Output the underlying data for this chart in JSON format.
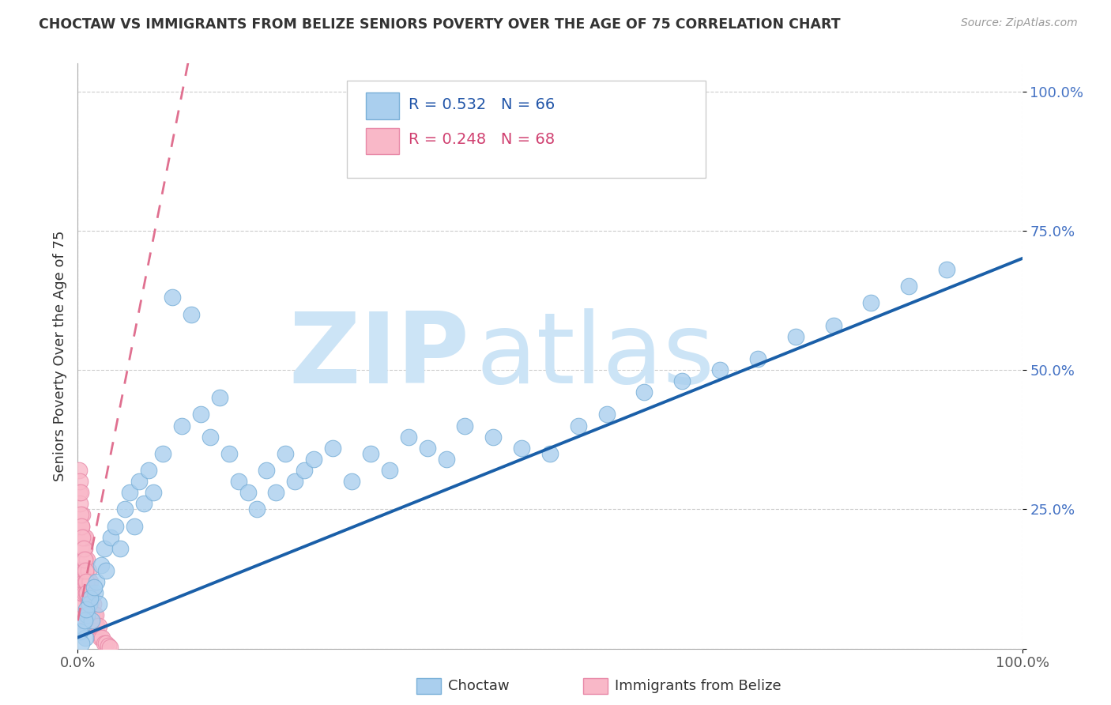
{
  "title": "CHOCTAW VS IMMIGRANTS FROM BELIZE SENIORS POVERTY OVER THE AGE OF 75 CORRELATION CHART",
  "source": "Source: ZipAtlas.com",
  "ylabel": "Seniors Poverty Over the Age of 75",
  "color_blue_fill": "#aacfee",
  "color_blue_edge": "#7ab0d8",
  "color_blue_line": "#1a5fa8",
  "color_pink_fill": "#f9b8c8",
  "color_pink_edge": "#e889a8",
  "color_pink_line": "#e07090",
  "color_grid": "#cccccc",
  "color_yticklabel": "#4472c4",
  "watermark_zip_color": "#c8e0f4",
  "watermark_atlas_color": "#b8d8f0",
  "legend1_color": "#2155a8",
  "legend2_color": "#d04070",
  "bottom_legend1": "Choctaw",
  "bottom_legend2": "Immigrants from Belize",
  "choctaw_x": [
    0.005,
    0.008,
    0.01,
    0.012,
    0.015,
    0.018,
    0.02,
    0.022,
    0.025,
    0.028,
    0.03,
    0.035,
    0.04,
    0.045,
    0.05,
    0.055,
    0.06,
    0.065,
    0.07,
    0.075,
    0.08,
    0.09,
    0.1,
    0.11,
    0.12,
    0.13,
    0.14,
    0.15,
    0.16,
    0.17,
    0.18,
    0.19,
    0.2,
    0.21,
    0.22,
    0.23,
    0.24,
    0.25,
    0.27,
    0.29,
    0.31,
    0.33,
    0.35,
    0.37,
    0.39,
    0.41,
    0.44,
    0.47,
    0.5,
    0.53,
    0.56,
    0.6,
    0.64,
    0.68,
    0.72,
    0.76,
    0.8,
    0.84,
    0.88,
    0.92,
    0.002,
    0.004,
    0.007,
    0.009,
    0.013,
    0.017
  ],
  "choctaw_y": [
    0.04,
    0.02,
    0.06,
    0.08,
    0.05,
    0.1,
    0.12,
    0.08,
    0.15,
    0.18,
    0.14,
    0.2,
    0.22,
    0.18,
    0.25,
    0.28,
    0.22,
    0.3,
    0.26,
    0.32,
    0.28,
    0.35,
    0.63,
    0.4,
    0.6,
    0.42,
    0.38,
    0.45,
    0.35,
    0.3,
    0.28,
    0.25,
    0.32,
    0.28,
    0.35,
    0.3,
    0.32,
    0.34,
    0.36,
    0.3,
    0.35,
    0.32,
    0.38,
    0.36,
    0.34,
    0.4,
    0.38,
    0.36,
    0.35,
    0.4,
    0.42,
    0.46,
    0.48,
    0.5,
    0.52,
    0.56,
    0.58,
    0.62,
    0.65,
    0.68,
    0.03,
    0.01,
    0.05,
    0.07,
    0.09,
    0.11
  ],
  "belize_x": [
    0.001,
    0.001,
    0.001,
    0.002,
    0.002,
    0.002,
    0.002,
    0.003,
    0.003,
    0.003,
    0.003,
    0.003,
    0.004,
    0.004,
    0.004,
    0.004,
    0.005,
    0.005,
    0.005,
    0.005,
    0.006,
    0.006,
    0.006,
    0.007,
    0.007,
    0.007,
    0.008,
    0.008,
    0.008,
    0.009,
    0.009,
    0.01,
    0.01,
    0.011,
    0.011,
    0.012,
    0.012,
    0.013,
    0.013,
    0.014,
    0.014,
    0.015,
    0.016,
    0.017,
    0.018,
    0.019,
    0.02,
    0.022,
    0.024,
    0.026,
    0.028,
    0.03,
    0.032,
    0.034,
    0.001,
    0.001,
    0.002,
    0.002,
    0.003,
    0.003,
    0.004,
    0.005,
    0.006,
    0.007,
    0.008,
    0.009,
    0.01,
    0.011
  ],
  "belize_y": [
    0.05,
    0.08,
    0.1,
    0.06,
    0.12,
    0.15,
    0.18,
    0.08,
    0.12,
    0.16,
    0.2,
    0.22,
    0.1,
    0.14,
    0.18,
    0.22,
    0.1,
    0.14,
    0.18,
    0.24,
    0.12,
    0.16,
    0.2,
    0.1,
    0.14,
    0.18,
    0.12,
    0.16,
    0.2,
    0.1,
    0.14,
    0.12,
    0.16,
    0.1,
    0.14,
    0.08,
    0.12,
    0.08,
    0.12,
    0.06,
    0.1,
    0.06,
    0.08,
    0.06,
    0.04,
    0.06,
    0.04,
    0.04,
    0.02,
    0.02,
    0.01,
    0.01,
    0.005,
    0.003,
    0.28,
    0.32,
    0.26,
    0.3,
    0.24,
    0.28,
    0.22,
    0.2,
    0.18,
    0.16,
    0.14,
    0.12,
    0.1,
    0.08
  ],
  "blue_line_x0": 0.0,
  "blue_line_x1": 1.0,
  "blue_line_y0": 0.02,
  "blue_line_y1": 0.7,
  "pink_line_x0": 0.0,
  "pink_line_x1": 0.035,
  "pink_line_y0": 0.05,
  "pink_line_y1": 0.35,
  "xlim": [
    0.0,
    1.0
  ],
  "ylim": [
    0.0,
    1.05
  ],
  "yticks": [
    0.0,
    0.25,
    0.5,
    0.75,
    1.0
  ],
  "ytick_labels": [
    "",
    "25.0%",
    "50.0%",
    "75.0%",
    "100.0%"
  ],
  "xtick_positions": [
    0.0,
    1.0
  ],
  "xtick_labels": [
    "0.0%",
    "100.0%"
  ]
}
